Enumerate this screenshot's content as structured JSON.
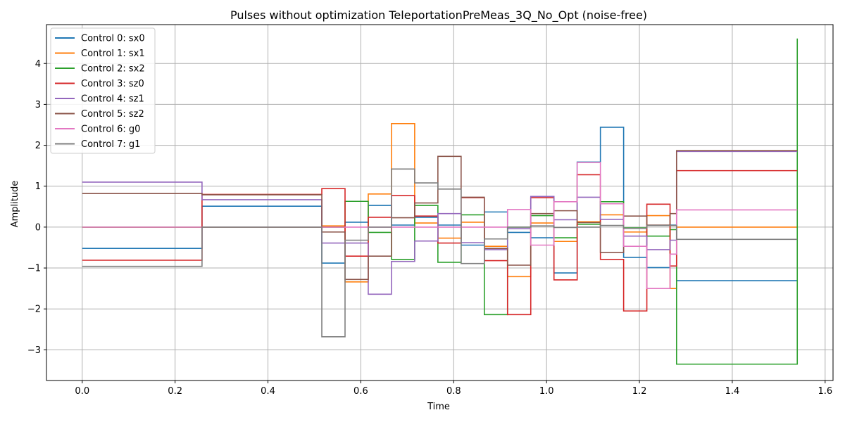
{
  "chart_data": {
    "type": "line",
    "step": "post",
    "title": "Pulses without optimization TeleportationPreMeas_3Q_No_Opt (noise-free)",
    "xlabel": "Time",
    "ylabel": "Amplitude",
    "xlim": [
      -0.077,
      1.617
    ],
    "ylim": [
      -3.75,
      4.95
    ],
    "xticks": [
      0.0,
      0.2,
      0.4,
      0.6,
      0.8,
      1.0,
      1.2,
      1.4,
      1.6
    ],
    "xtick_labels": [
      "0.0",
      "0.2",
      "0.4",
      "0.6",
      "0.8",
      "1.0",
      "1.2",
      "1.4",
      "1.6"
    ],
    "yticks": [
      -3,
      -2,
      -1,
      0,
      1,
      2,
      3,
      4
    ],
    "ytick_labels": [
      "−3",
      "−2",
      "−1",
      "0",
      "1",
      "2",
      "3",
      "4"
    ],
    "grid": true,
    "legend_position": "top-left",
    "x": [
      0.0,
      0.258,
      0.516,
      0.566,
      0.616,
      0.666,
      0.716,
      0.766,
      0.816,
      0.866,
      0.916,
      0.966,
      1.016,
      1.066,
      1.116,
      1.166,
      1.216,
      1.266,
      1.28,
      1.54
    ],
    "series": [
      {
        "name": "Control 0: sx0",
        "color": "#1f77b4",
        "values": [
          -0.52,
          0.51,
          -0.88,
          0.12,
          0.53,
          0.05,
          0.24,
          0.05,
          -0.44,
          0.37,
          -0.13,
          -0.26,
          -1.12,
          1.59,
          2.44,
          -0.74,
          -0.99,
          0.05,
          -1.31,
          -1.31
        ]
      },
      {
        "name": "Control 1: sx1",
        "color": "#ff7f0e",
        "values": [
          0.0,
          0.0,
          0.03,
          -1.34,
          0.81,
          2.53,
          0.1,
          -0.27,
          0.12,
          -0.47,
          -1.21,
          0.1,
          -0.35,
          0.13,
          0.3,
          -0.12,
          0.28,
          -1.5,
          0.0,
          0.0
        ]
      },
      {
        "name": "Control 2: sx2",
        "color": "#2ca02c",
        "values": [
          0.0,
          0.0,
          0.0,
          0.63,
          -0.13,
          -0.79,
          0.53,
          -0.86,
          0.3,
          -2.14,
          0.0,
          0.28,
          -0.26,
          0.07,
          0.62,
          -0.02,
          -0.22,
          -0.06,
          -3.35,
          4.61
        ]
      },
      {
        "name": "Control 3: sz0",
        "color": "#d62728",
        "values": [
          -0.81,
          0.8,
          0.94,
          -0.71,
          0.24,
          0.77,
          0.27,
          -0.39,
          0.72,
          -0.82,
          -2.14,
          0.72,
          -1.29,
          1.28,
          -0.79,
          -2.05,
          0.56,
          -0.95,
          1.38,
          1.38
        ]
      },
      {
        "name": "Control 4: sz1",
        "color": "#9467bd",
        "values": [
          1.1,
          0.67,
          -0.39,
          -0.39,
          -1.64,
          -0.84,
          -0.34,
          0.33,
          -0.38,
          -0.55,
          -0.04,
          0.75,
          0.18,
          0.73,
          0.19,
          -0.22,
          -0.55,
          -0.32,
          1.85,
          1.85
        ]
      },
      {
        "name": "Control 5: sz2",
        "color": "#8c564b",
        "values": [
          0.82,
          0.79,
          -0.12,
          -1.28,
          -0.71,
          0.23,
          0.59,
          1.73,
          0.73,
          -0.52,
          -0.93,
          0.33,
          0.4,
          0.11,
          -0.62,
          0.27,
          0.05,
          0.33,
          1.87,
          1.87
        ]
      },
      {
        "name": "Control 6: g0",
        "color": "#e377c2",
        "values": [
          0.0,
          0.0,
          0.0,
          0.0,
          0.0,
          0.0,
          0.0,
          0.0,
          0.0,
          0.0,
          0.43,
          -0.44,
          0.62,
          1.58,
          0.57,
          -0.47,
          -1.5,
          -0.66,
          0.42,
          0.42
        ]
      },
      {
        "name": "Control 7: g1",
        "color": "#7f7f7f",
        "values": [
          -0.96,
          0.0,
          -2.68,
          -0.32,
          0.0,
          1.42,
          1.08,
          0.93,
          -0.89,
          -0.29,
          0.0,
          0.03,
          -0.01,
          0.0,
          0.04,
          -0.03,
          0.04,
          0.04,
          -0.3,
          -0.3
        ]
      }
    ]
  }
}
